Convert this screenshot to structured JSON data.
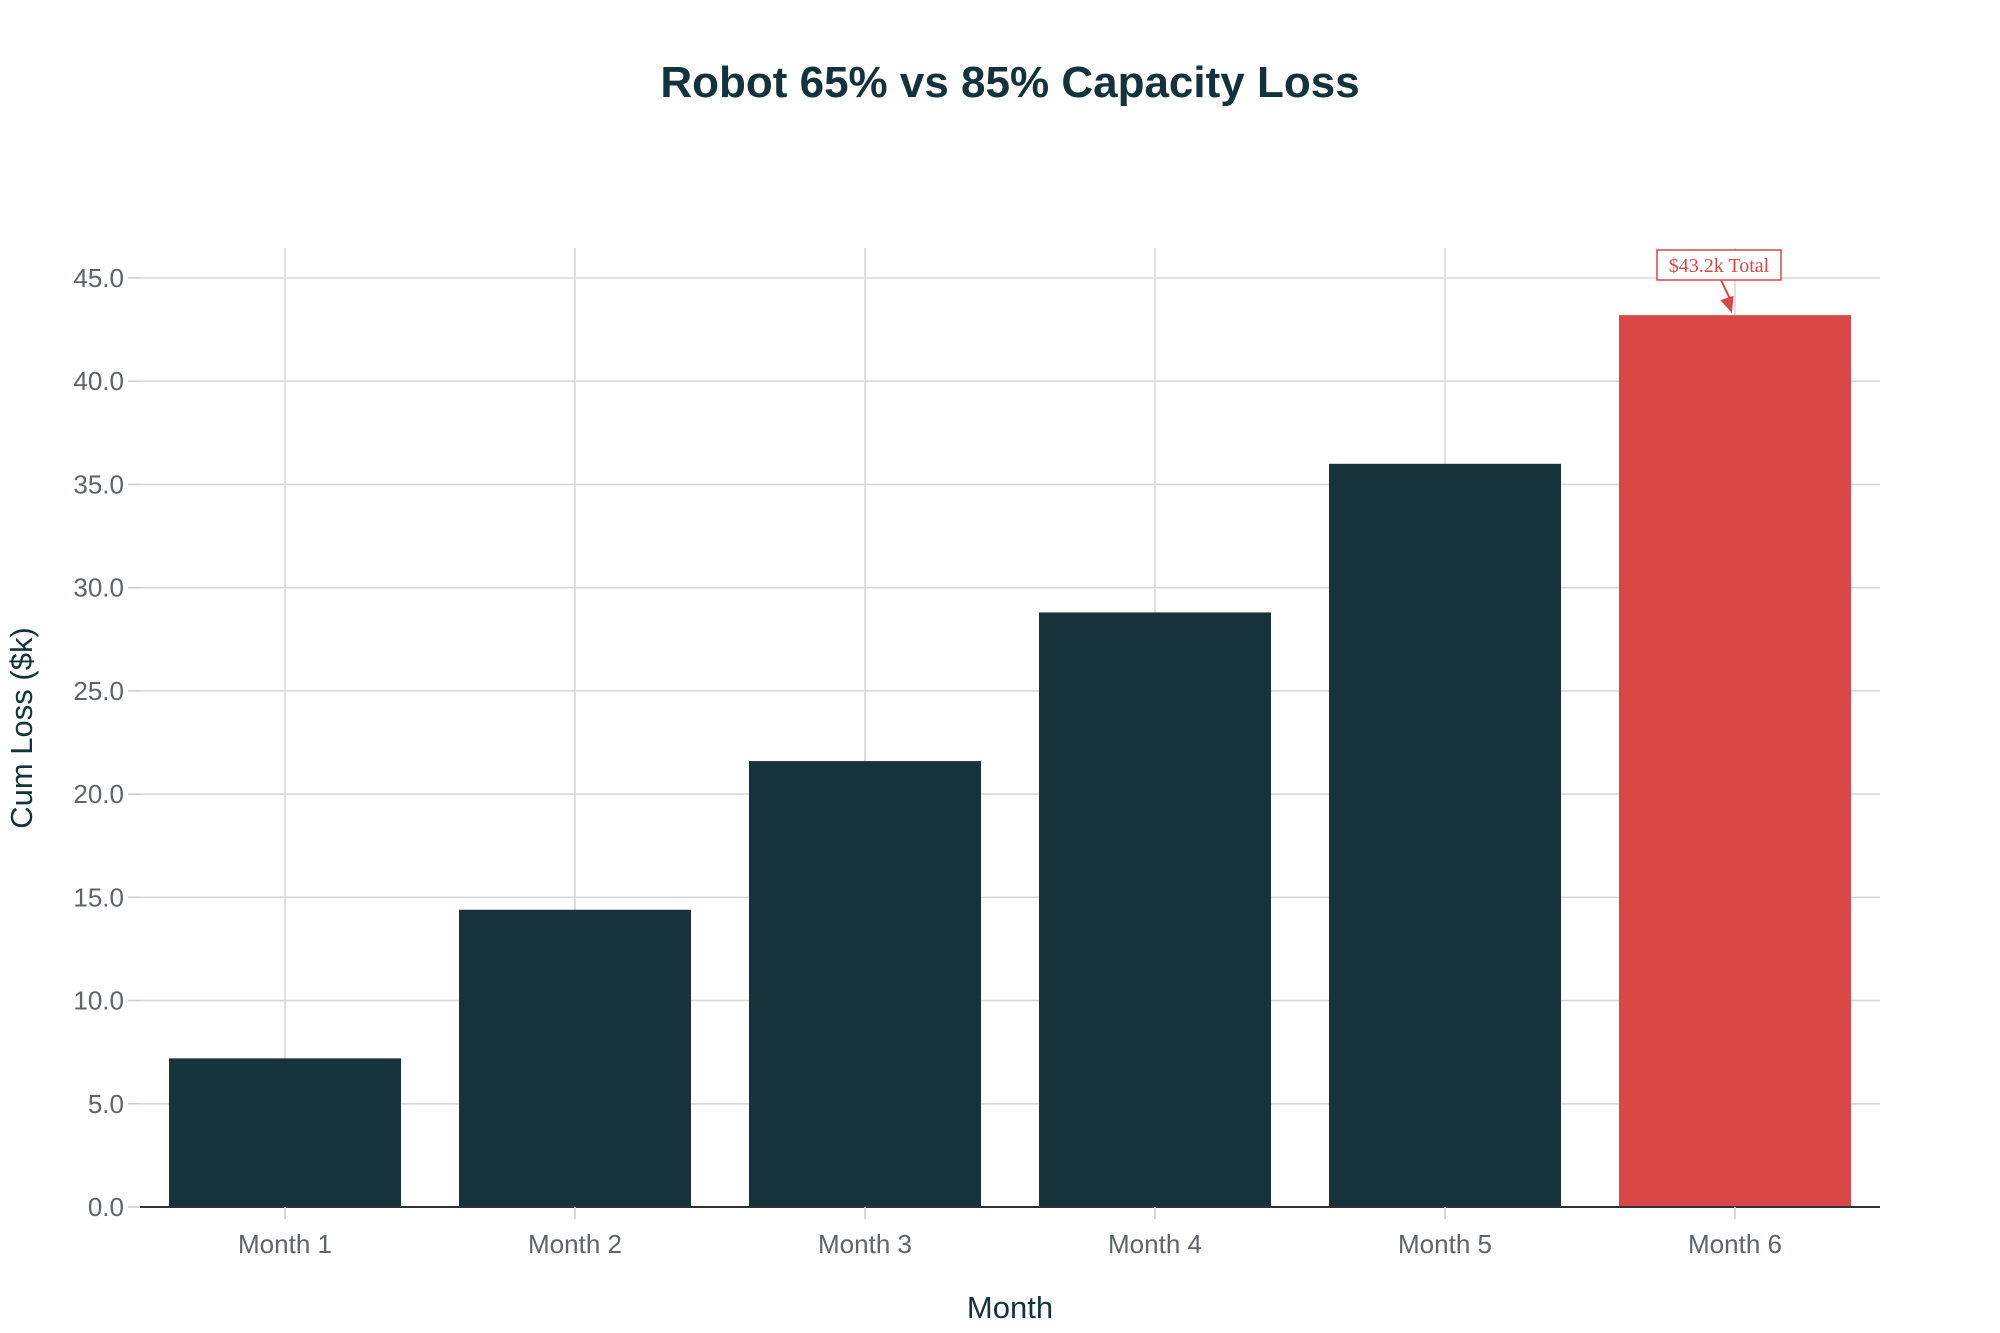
{
  "chart_data": {
    "type": "bar",
    "title": "Robot 65% vs 85% Capacity Loss",
    "xlabel": "Month",
    "ylabel": "Cum Loss ($k)",
    "categories": [
      "Month 1",
      "Month 2",
      "Month 3",
      "Month 4",
      "Month 5",
      "Month 6"
    ],
    "values": [
      7.2,
      14.4,
      21.6,
      28.8,
      36.0,
      43.2
    ],
    "bar_colors": [
      "#16333c",
      "#16333c",
      "#16333c",
      "#16333c",
      "#16333c",
      "#da4747"
    ],
    "ylim": [
      0,
      45
    ],
    "yticks": [
      0,
      5,
      10,
      15,
      20,
      25,
      30,
      35,
      40,
      45
    ],
    "ytick_labels": [
      "0.0",
      "5.0",
      "10.0",
      "15.0",
      "20.0",
      "25.0",
      "30.0",
      "35.0",
      "40.0",
      "45.0"
    ],
    "grid": true,
    "annotation": {
      "text": "$43.2k Total",
      "target_category": "Month 6",
      "target_value": 43.2,
      "color": "#da4747"
    }
  }
}
